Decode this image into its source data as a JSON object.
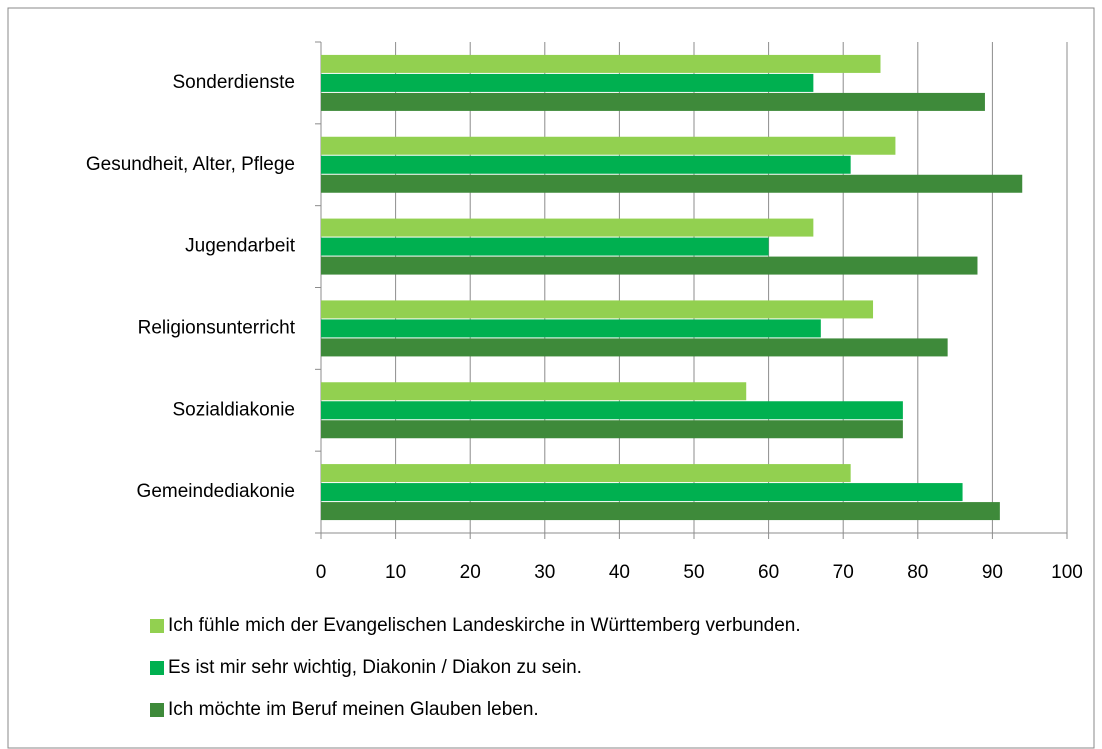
{
  "chart_data": {
    "type": "hbar",
    "categories": [
      "Sonderdienste",
      "Gesundheit, Alter, Pflege",
      "Jugendarbeit",
      "Religionsunterricht",
      "Sozialdiakonie",
      "Gemeindediakonie"
    ],
    "series": [
      {
        "name": "Ich fühle mich der Evangelischen Landeskirche in Württemberg verbunden.",
        "color": "#92d050",
        "values": [
          75,
          77,
          66,
          74,
          57,
          71
        ]
      },
      {
        "name": "Es ist mir sehr wichtig, Diakonin / Diakon zu sein.",
        "color": "#00b050",
        "values": [
          66,
          71,
          60,
          67,
          78,
          86
        ]
      },
      {
        "name": "Ich möchte im Beruf meinen Glauben leben.",
        "color": "#3e8a3a",
        "values": [
          89,
          94,
          88,
          84,
          78,
          91
        ]
      }
    ],
    "xlim": [
      0,
      100
    ],
    "xticks": [
      0,
      10,
      20,
      30,
      40,
      50,
      60,
      70,
      80,
      90,
      100
    ],
    "grid": true,
    "legend": "bottom"
  }
}
